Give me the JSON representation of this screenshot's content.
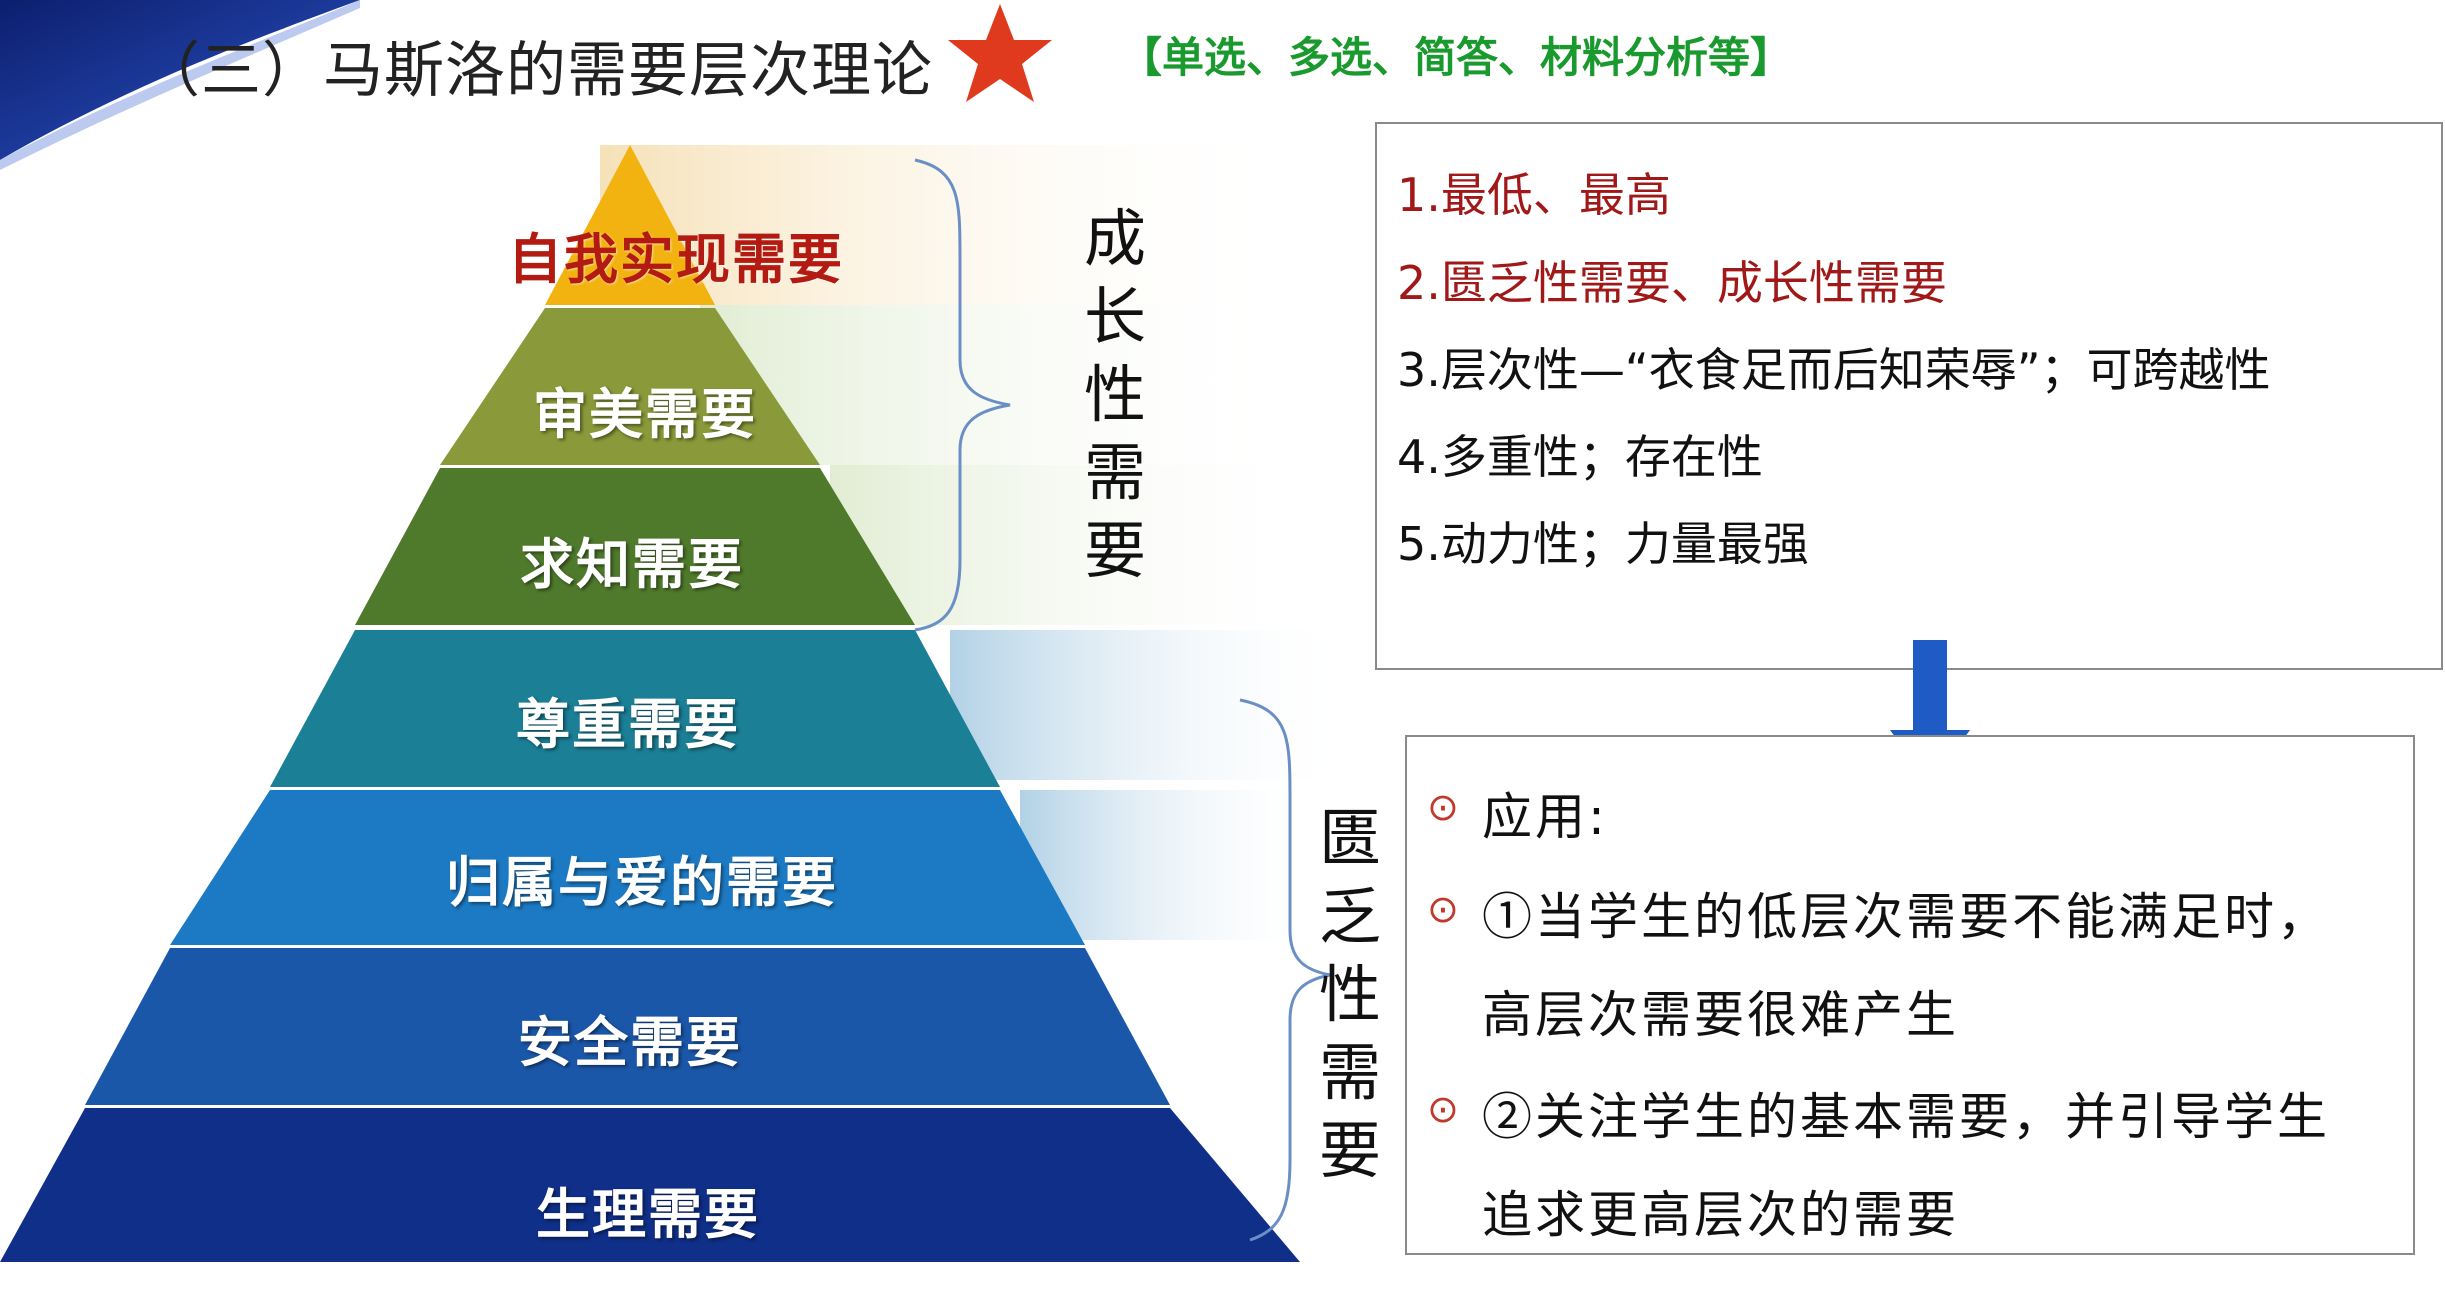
{
  "header": {
    "title": "（三）马斯洛的需要层次理论",
    "tags": "【单选、多选、简答、材料分析等】",
    "star_color": "#e03a1e"
  },
  "pyramid": {
    "tiers": [
      {
        "label": "自我实现需要",
        "color": "#f2b20f"
      },
      {
        "label": "审美需要",
        "color": "#8a9a3a"
      },
      {
        "label": "求知需要",
        "color": "#4f7a2c"
      },
      {
        "label": "尊重需要",
        "color": "#1b7f96"
      },
      {
        "label": "归属与爱的需要",
        "color": "#1c7ac4"
      },
      {
        "label": "安全需要",
        "color": "#1b57a8"
      },
      {
        "label": "生理需要",
        "color": "#0f2f88"
      }
    ]
  },
  "groups": {
    "growth": "成长性需要",
    "deficiency": "匮乏性需要"
  },
  "points": {
    "items": [
      "1.最低、最高",
      "2.匮乏性需要、成长性需要",
      "3.层次性—“衣食足而后知荣辱”；可跨越性",
      "4.多重性；存在性",
      "5.动力性；力量最强"
    ]
  },
  "application": {
    "heading": "应用:",
    "line1": "①当学生的低层次需要不能满足时，",
    "line2": "高层次需要很难产生",
    "line3": "②关注学生的基本需要，并引导学生",
    "line4": "追求更高层次的需要",
    "bullet": "⊙"
  },
  "colors": {
    "arrow": "#1f5bc4",
    "red_text": "#a01818",
    "green_text": "#1a9a2e"
  }
}
